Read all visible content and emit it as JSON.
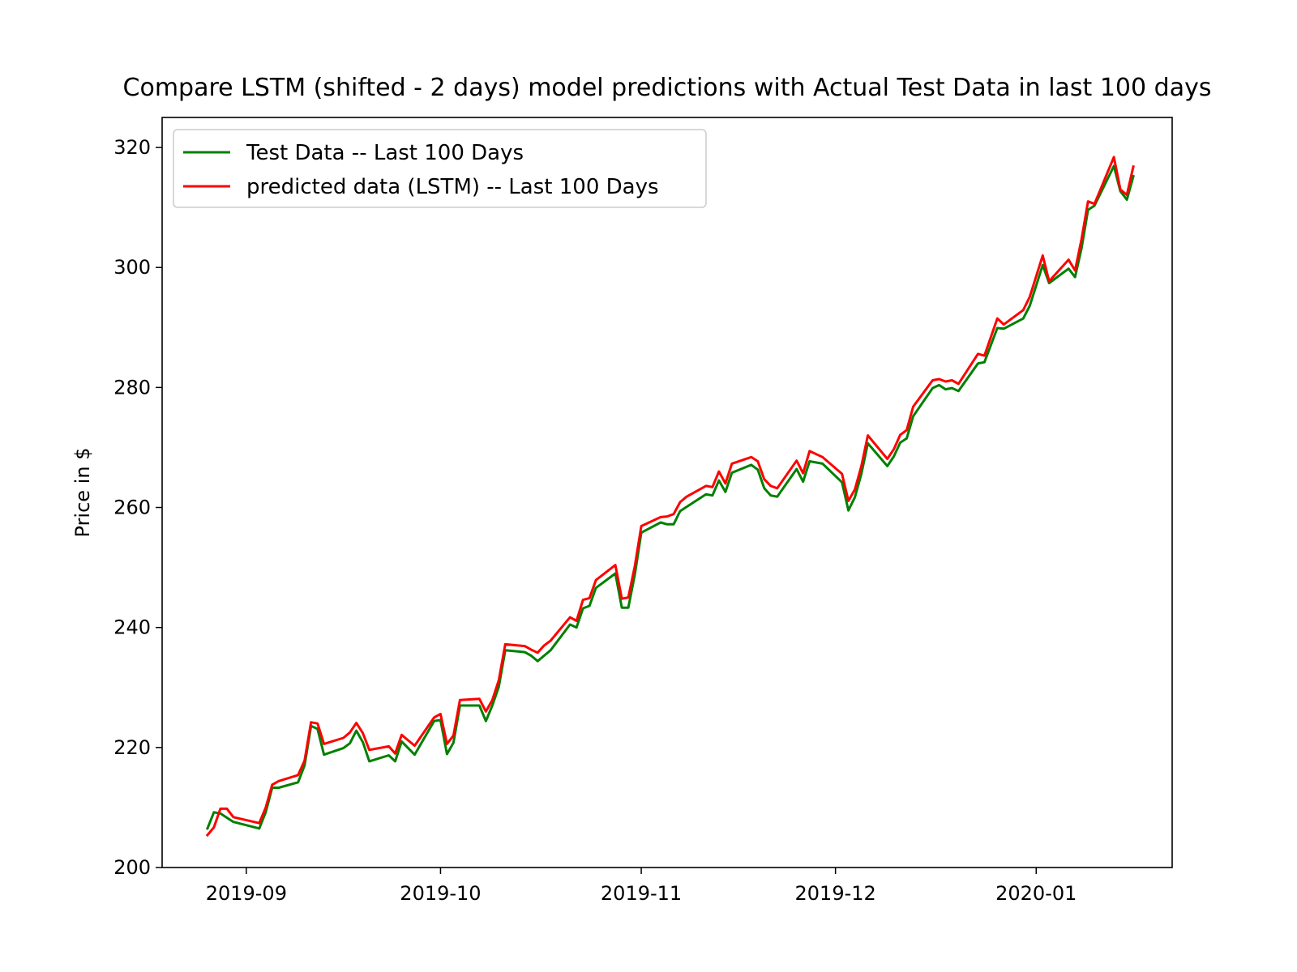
{
  "chart_data": {
    "type": "line",
    "title": "Compare LSTM (shifted - 2 days) model predictions with Actual Test Data in last 100 days",
    "xlabel": "",
    "ylabel": "Price in $",
    "xlim": [
      "2019-08-19",
      "2020-01-22"
    ],
    "ylim": [
      200,
      325
    ],
    "grid": false,
    "legend": "upper-left",
    "x_ticks": [
      "2019-09",
      "2019-10",
      "2019-11",
      "2019-12",
      "2020-01"
    ],
    "y_ticks": [
      200,
      220,
      240,
      260,
      280,
      300,
      320
    ],
    "x": [
      "2019-08-26",
      "2019-08-27",
      "2019-08-28",
      "2019-08-29",
      "2019-08-30",
      "2019-09-03",
      "2019-09-04",
      "2019-09-05",
      "2019-09-06",
      "2019-09-09",
      "2019-09-10",
      "2019-09-11",
      "2019-09-12",
      "2019-09-13",
      "2019-09-16",
      "2019-09-17",
      "2019-09-18",
      "2019-09-19",
      "2019-09-20",
      "2019-09-23",
      "2019-09-24",
      "2019-09-25",
      "2019-09-26",
      "2019-09-27",
      "2019-09-30",
      "2019-10-01",
      "2019-10-02",
      "2019-10-03",
      "2019-10-04",
      "2019-10-07",
      "2019-10-08",
      "2019-10-09",
      "2019-10-10",
      "2019-10-11",
      "2019-10-14",
      "2019-10-15",
      "2019-10-16",
      "2019-10-17",
      "2019-10-18",
      "2019-10-21",
      "2019-10-22",
      "2019-10-23",
      "2019-10-24",
      "2019-10-25",
      "2019-10-28",
      "2019-10-29",
      "2019-10-30",
      "2019-10-31",
      "2019-11-01",
      "2019-11-04",
      "2019-11-05",
      "2019-11-06",
      "2019-11-07",
      "2019-11-08",
      "2019-11-11",
      "2019-11-12",
      "2019-11-13",
      "2019-11-14",
      "2019-11-15",
      "2019-11-18",
      "2019-11-19",
      "2019-11-20",
      "2019-11-21",
      "2019-11-22",
      "2019-11-25",
      "2019-11-26",
      "2019-11-27",
      "2019-11-29",
      "2019-12-02",
      "2019-12-03",
      "2019-12-04",
      "2019-12-05",
      "2019-12-06",
      "2019-12-09",
      "2019-12-10",
      "2019-12-11",
      "2019-12-12",
      "2019-12-13",
      "2019-12-16",
      "2019-12-17",
      "2019-12-18",
      "2019-12-19",
      "2019-12-20",
      "2019-12-23",
      "2019-12-24",
      "2019-12-26",
      "2019-12-27",
      "2019-12-30",
      "2019-12-31",
      "2020-01-02",
      "2020-01-03",
      "2020-01-06",
      "2020-01-07",
      "2020-01-08",
      "2020-01-09",
      "2020-01-10",
      "2020-01-13",
      "2020-01-14",
      "2020-01-15",
      "2020-01-16"
    ],
    "series": [
      {
        "name": "Test Data -- Last 100 Days",
        "color": "#008000",
        "values": [
          206.5,
          209.2,
          209.0,
          208.3,
          207.6,
          206.5,
          209.2,
          213.3,
          213.3,
          214.2,
          217.0,
          223.6,
          223.1,
          218.8,
          219.9,
          220.7,
          222.8,
          220.9,
          217.7,
          218.7,
          217.7,
          221.0,
          219.9,
          218.8,
          224.4,
          224.6,
          218.9,
          220.8,
          227.0,
          227.0,
          224.4,
          227.0,
          230.1,
          236.2,
          235.9,
          235.3,
          234.4,
          235.3,
          236.2,
          240.5,
          240.0,
          243.2,
          243.6,
          246.6,
          249.0,
          243.3,
          243.3,
          248.8,
          255.8,
          257.5,
          257.2,
          257.2,
          259.4,
          260.1,
          262.2,
          262.0,
          264.5,
          262.6,
          265.8,
          267.1,
          266.3,
          263.2,
          262.0,
          261.8,
          266.4,
          264.3,
          267.7,
          267.3,
          264.2,
          259.5,
          261.7,
          265.6,
          270.7,
          266.9,
          268.5,
          270.8,
          271.5,
          275.2,
          279.9,
          280.4,
          279.7,
          279.9,
          279.4,
          284.0,
          284.2,
          289.9,
          289.8,
          291.5,
          293.6,
          300.4,
          297.4,
          299.8,
          298.4,
          303.2,
          309.6,
          310.3,
          316.9,
          312.7,
          311.3,
          315.2
        ]
      },
      {
        "name": "predicted data (LSTM) -- Last 100 Days",
        "color": "#ff0000",
        "values": [
          205.4,
          206.7,
          209.8,
          209.8,
          208.4,
          207.4,
          210.0,
          213.8,
          214.4,
          215.4,
          217.8,
          224.2,
          224.0,
          220.6,
          221.6,
          222.5,
          224.1,
          222.4,
          219.6,
          220.2,
          219.0,
          222.1,
          221.2,
          220.3,
          225.0,
          225.6,
          220.6,
          222.0,
          227.9,
          228.1,
          226.0,
          227.9,
          231.2,
          237.2,
          236.9,
          236.3,
          235.8,
          237.0,
          237.8,
          241.7,
          241.1,
          244.6,
          244.9,
          247.9,
          250.4,
          244.8,
          245.0,
          250.2,
          256.9,
          258.4,
          258.5,
          258.9,
          260.9,
          261.8,
          263.6,
          263.4,
          266.0,
          264.0,
          267.3,
          268.4,
          267.7,
          264.7,
          263.6,
          263.2,
          267.8,
          265.7,
          269.4,
          268.4,
          265.6,
          261.1,
          263.0,
          266.9,
          272.0,
          268.1,
          269.7,
          272.1,
          272.9,
          276.8,
          281.2,
          281.4,
          281.0,
          281.2,
          280.6,
          285.6,
          285.3,
          291.5,
          290.5,
          292.9,
          295.1,
          302.0,
          297.7,
          301.3,
          299.5,
          304.7,
          311.0,
          310.6,
          318.4,
          313.0,
          312.1,
          316.8
        ]
      }
    ]
  }
}
